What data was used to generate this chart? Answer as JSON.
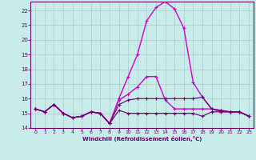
{
  "xlabel": "Windchill (Refroidissement éolien,°C)",
  "bg_color": "#c8ecea",
  "line_color_bright": "#cc00cc",
  "line_color_dark": "#660066",
  "grid_color": "#b0c8cc",
  "xlim": [
    -0.5,
    23.5
  ],
  "ylim": [
    14,
    22.6
  ],
  "yticks": [
    14,
    15,
    16,
    17,
    18,
    19,
    20,
    21,
    22
  ],
  "xticks": [
    0,
    1,
    2,
    3,
    4,
    5,
    6,
    7,
    8,
    9,
    10,
    11,
    12,
    13,
    14,
    15,
    16,
    17,
    18,
    19,
    20,
    21,
    22,
    23
  ],
  "series": [
    {
      "y": [
        15.3,
        15.1,
        15.6,
        15.0,
        14.7,
        14.8,
        15.1,
        15.0,
        14.3,
        15.9,
        16.3,
        16.8,
        17.5,
        17.5,
        15.9,
        15.3,
        15.3,
        15.3,
        15.3,
        15.3,
        15.1,
        15.1,
        15.1,
        14.8
      ],
      "color": "#cc00cc",
      "lw": 1.0
    },
    {
      "y": [
        15.3,
        15.1,
        15.6,
        15.0,
        14.7,
        14.8,
        15.1,
        15.0,
        14.3,
        16.0,
        17.5,
        19.0,
        21.3,
        22.2,
        22.6,
        22.1,
        20.8,
        17.1,
        16.1,
        15.3,
        15.2,
        15.1,
        15.1,
        14.8
      ],
      "color": "#cc00cc",
      "lw": 1.0
    },
    {
      "y": [
        15.3,
        15.1,
        15.6,
        15.0,
        14.7,
        14.8,
        15.1,
        15.0,
        14.3,
        15.2,
        15.0,
        15.0,
        15.0,
        15.0,
        15.0,
        15.0,
        15.0,
        15.0,
        14.8,
        15.1,
        15.1,
        15.1,
        15.1,
        14.8
      ],
      "color": "#660066",
      "lw": 0.8
    },
    {
      "y": [
        15.3,
        15.1,
        15.6,
        15.0,
        14.7,
        14.8,
        15.1,
        15.0,
        14.3,
        15.6,
        15.9,
        16.0,
        16.0,
        16.0,
        16.0,
        16.0,
        16.0,
        16.0,
        16.1,
        15.3,
        15.2,
        15.1,
        15.1,
        14.8
      ],
      "color": "#660066",
      "lw": 0.8
    }
  ]
}
